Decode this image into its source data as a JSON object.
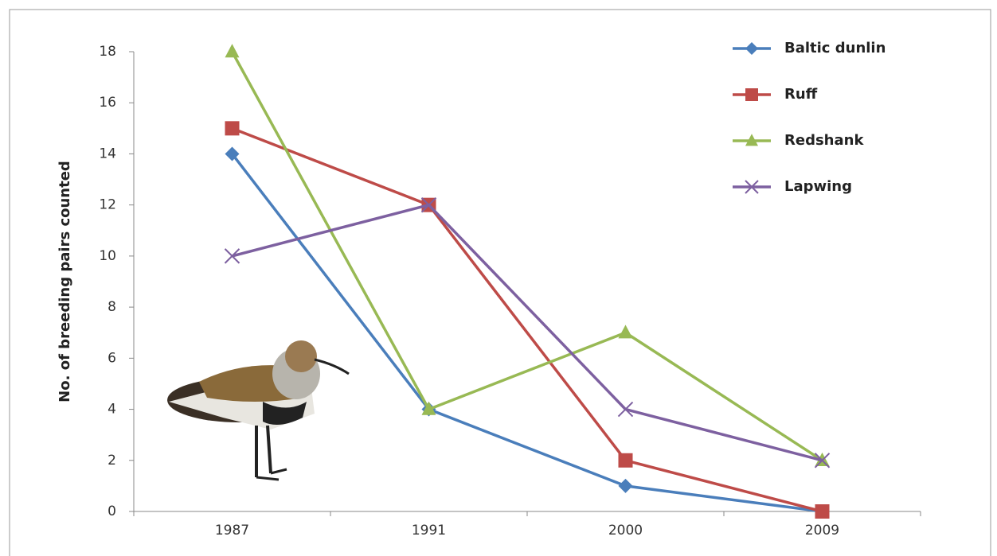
{
  "chart_data": {
    "type": "line",
    "y_label": "No. of breeding pairs counted",
    "categories": [
      "1987",
      "1991",
      "2000",
      "2009"
    ],
    "series": [
      {
        "name": "Baltic dunlin",
        "color": "#4a7ebb",
        "marker": "diamond",
        "values": [
          14,
          4,
          1,
          0
        ]
      },
      {
        "name": "Ruff",
        "color": "#be4b48",
        "marker": "square",
        "values": [
          15,
          12,
          2,
          0
        ]
      },
      {
        "name": "Redshank",
        "color": "#98b954",
        "marker": "triangle",
        "values": [
          18,
          4,
          7,
          2
        ]
      },
      {
        "name": "Lapwing",
        "color": "#7d60a0",
        "marker": "x",
        "values": [
          10,
          12,
          4,
          2
        ]
      }
    ],
    "ylim": [
      0,
      18
    ],
    "yticks": [
      0,
      2,
      4,
      6,
      8,
      10,
      12,
      14,
      16,
      18
    ],
    "grid": false,
    "legend": "top-right"
  }
}
